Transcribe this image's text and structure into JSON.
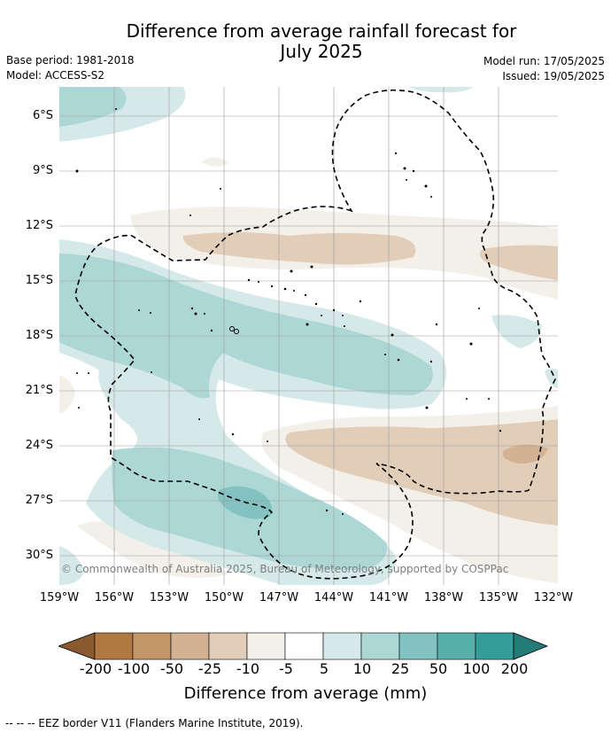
{
  "title": "Difference from average rainfall forecast for July 2025",
  "title_line1": "Difference from average rainfall forecast for",
  "title_line2": "July 2025",
  "base_period": "Base period: 1981-2018",
  "model": "Model: ACCESS-S2",
  "model_run": "Model run: 17/05/2025",
  "issued": "Issued: 19/05/2025",
  "lat_labels": [
    "6°S",
    "9°S",
    "12°S",
    "15°S",
    "18°S",
    "21°S",
    "24°S",
    "27°S",
    "30°S"
  ],
  "lon_labels": [
    "159°W",
    "156°W",
    "153°W",
    "150°W",
    "147°W",
    "144°W",
    "141°W",
    "138°W",
    "135°W",
    "132°W"
  ],
  "copyright": "© Commonwealth of Australia 2025, Bureau of Meteorology, supported by COSPPac",
  "colorbar": {
    "title": "Difference from average (mm)",
    "tick_labels": [
      "-200",
      "-100",
      "-50",
      "-25",
      "-10",
      "-5",
      "5",
      "10",
      "25",
      "50",
      "100",
      "200"
    ],
    "colors": [
      "#8a5a2e",
      "#b07843",
      "#c49668",
      "#d2b292",
      "#e2cdb9",
      "#f3efe9",
      "#ffffff",
      "#d5e9e8",
      "#acd7d5",
      "#82c2c0",
      "#58aeab",
      "#349d99",
      "#247b78"
    ]
  },
  "legend_eez": "--  --  -- EEZ border V11 (Flanders Marine Institute, 2019).",
  "map": {
    "lat_range": [
      "5°S",
      "32°S"
    ],
    "lon_range": [
      "159°W",
      "132°W"
    ],
    "grid": true,
    "overlay": "EEZ border (dashed)"
  }
}
